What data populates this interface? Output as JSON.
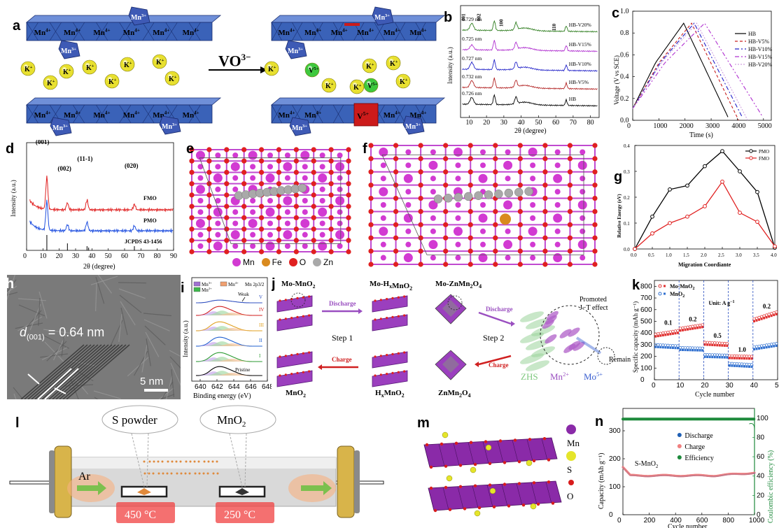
{
  "panels": {
    "a": {
      "label": "a",
      "arrow_label": "VO",
      "arrow_label_sup": "3−",
      "layer_ions_mn4": "Mn",
      "layer_ions_mn4_sup": "4+",
      "layer_ions_mn3": "Mn",
      "layer_ions_mn3_sup": "3+",
      "k_ion": "K",
      "k_ion_sup": "+",
      "v_ion": "V",
      "v_ion_sup": "5+",
      "colors": {
        "slab": "#3a62b8",
        "k": "#e8e030",
        "v": "#3ec83e",
        "vo": "#cc1b1b"
      }
    },
    "b": {
      "label": "b",
      "xlabel": "2θ (degree)",
      "ylabel": "Intensity (a.u.)",
      "peaks": [
        "001",
        "002",
        "100",
        "110"
      ],
      "xticks": [
        10,
        20,
        30,
        40,
        50,
        60,
        70,
        80
      ],
      "series": [
        {
          "name": "HB",
          "d": "0.726 nm",
          "color": "#000000"
        },
        {
          "name": "HB-V5%",
          "d": "0.732 nm",
          "color": "#b22222"
        },
        {
          "name": "HB-V10%",
          "d": "0.727 nm",
          "color": "#2222c8"
        },
        {
          "name": "HB-V15%",
          "d": "0.725 nm",
          "color": "#b030d0"
        },
        {
          "name": "HB-V20%",
          "d": "0.729 nm",
          "color": "#2e7d1e"
        }
      ]
    },
    "c": {
      "label": "c",
      "xlabel": "Time (s)",
      "ylabel": "Voltage (V vs SCE)",
      "xticks": [
        0,
        1000,
        2000,
        3000,
        4000,
        5000
      ],
      "yticks": [
        "0.0",
        "0.2",
        "0.4",
        "0.6",
        "0.8",
        "1.0"
      ],
      "legend": [
        {
          "name": "HB",
          "color": "#000000",
          "dash": ""
        },
        {
          "name": "HB-V5%",
          "color": "#c82020",
          "dash": "4,3"
        },
        {
          "name": "HB-V10%",
          "color": "#2020c8",
          "dash": "6,3,2,3"
        },
        {
          "name": "HB-V15%",
          "color": "#b030d0",
          "dash": "6,3,2,3,2,3"
        },
        {
          "name": "HB-V20%",
          "color": "#d0a0e0",
          "dash": "2,2"
        }
      ]
    },
    "d": {
      "label": "d",
      "xlabel": "2θ (degree)",
      "ylabel": "Intensity (a.u.)",
      "peaks": [
        "(001)",
        "(002)",
        "(11-1)",
        "(020)"
      ],
      "fmo": "FMO",
      "pmo": "PMO",
      "ref": "JCPDS 43-1456",
      "xticks": [
        0,
        10,
        20,
        30,
        40,
        50,
        60,
        70,
        80,
        90
      ]
    },
    "e": {
      "label": "e"
    },
    "f": {
      "label": "f"
    },
    "ef_legend": [
      {
        "name": "Mn",
        "color": "#d23ad2"
      },
      {
        "name": "Fe",
        "color": "#d98a1e"
      },
      {
        "name": "O",
        "color": "#e02020"
      },
      {
        "name": "Zn",
        "color": "#a9a9a9"
      }
    ],
    "g": {
      "label": "g",
      "xlabel": "Migration Coordiante",
      "ylabel": "Relative Energy (eV)",
      "xticks": [
        "0.0",
        "0.5",
        "1.0",
        "1.5",
        "2.0",
        "2.5",
        "3.0",
        "3.5",
        "4.0"
      ],
      "yticks": [
        "0.0",
        "0.1",
        "0.2",
        "0.3",
        "0.4"
      ]
    },
    "h": {
      "label": "h",
      "d_text": "d",
      "d_sub": "(001)",
      "d_value": " = 0.64 nm",
      "scale": "5 nm"
    },
    "i": {
      "label": "i",
      "legend": [
        "Mn",
        "Mn",
        "Mn",
        "Mn 2p"
      ],
      "legend_sup": [
        "3+",
        "2+",
        "4+",
        ""
      ],
      "legend_sub_32": "3/2",
      "weak": "Weak",
      "states": [
        "V",
        "IV",
        "III",
        "II",
        "I",
        "Pristine"
      ],
      "xlabel": "Binding energy (eV)",
      "ylabel": "Intensity (a.u.)",
      "xticks": [
        "640",
        "642",
        "644",
        "646",
        "648"
      ]
    },
    "j": {
      "label": "j",
      "mo_mno2": "Mo-MnO",
      "mo_hxmno2": "Mo-H",
      "mo_znmn2o4": "Mo-ZnMn",
      "mno2": "MnO",
      "hxmno2": "H",
      "znmn2o4": "ZnMn",
      "discharge": "Discharge",
      "charge": "Charge",
      "step1": "Step 1",
      "step2": "Step 2",
      "promoted": "Promoted",
      "jt": "J−T effect",
      "remain": "Remain",
      "zhs": "ZHS",
      "mn2": "Mn",
      "mn2_sup": "2+",
      "mo5": "Mo",
      "mo5_sup": "5+"
    },
    "k": {
      "label": "k",
      "legend": [
        "Mo-MnO",
        "MnO"
      ],
      "unit": "Unit: A g",
      "rates": [
        "0.1",
        "0.2",
        "0.5",
        "1.0",
        "0.2"
      ],
      "xlabel": "Cycle number",
      "ylabel": "Specific capacity (mAh g",
      "xticks": [
        "0",
        "10",
        "20",
        "30",
        "40",
        "50"
      ],
      "yticks": [
        "0",
        "100",
        "200",
        "300",
        "400",
        "500",
        "600",
        "700",
        "800"
      ]
    },
    "l": {
      "label": "l",
      "s_powder": "S powder",
      "mno2": "MnO",
      "ar": "Ar",
      "t1": "450 °C",
      "t2": "250 °C"
    },
    "m": {
      "label": "m",
      "legend": [
        {
          "name": "Mn",
          "color": "#8a2aa8"
        },
        {
          "name": "S",
          "color": "#e5e52a"
        },
        {
          "name": "O",
          "color": "#d81c1c"
        }
      ]
    },
    "n": {
      "label": "n",
      "legend": [
        {
          "name": "Discharge",
          "color": "#1f5fb4"
        },
        {
          "name": "Charge",
          "color": "#f08080"
        },
        {
          "name": "Efficiency",
          "color": "#1e8a3c"
        }
      ],
      "series_label": "S-MnO",
      "xlabel": "Cycle number",
      "ylabel": "Capacity (mAh g",
      "ylabel_right": "Coulombic efficiency (%)",
      "xticks": [
        "0",
        "200",
        "400",
        "600",
        "800",
        "1000"
      ],
      "yticks": [
        "0",
        "100",
        "200",
        "300"
      ],
      "yticks_right": [
        "0",
        "20",
        "40",
        "60",
        "80",
        "100"
      ]
    }
  },
  "chart_data": [
    {
      "id": "c",
      "type": "line",
      "title": "",
      "xlabel": "Time (s)",
      "ylabel": "Voltage (V vs SCE)",
      "xlim": [
        0,
        5300
      ],
      "ylim": [
        0,
        1.0
      ],
      "series": [
        {
          "name": "HB",
          "peak_t": 1950,
          "end_t": 3700,
          "peak_v": 0.89
        },
        {
          "name": "HB-V5%",
          "peak_t": 2250,
          "end_t": 4050,
          "peak_v": 0.89
        },
        {
          "name": "HB-V10%",
          "peak_t": 2350,
          "end_t": 4250,
          "peak_v": 0.89
        },
        {
          "name": "HB-V15%",
          "peak_t": 2750,
          "end_t": 5050,
          "peak_v": 0.89
        },
        {
          "name": "HB-V20%",
          "peak_t": 2450,
          "end_t": 4400,
          "peak_v": 0.89
        }
      ]
    },
    {
      "id": "g",
      "type": "line",
      "title": "",
      "xlabel": "Migration Coordiante",
      "ylabel": "Relative Energy (eV)",
      "xlim": [
        0,
        4.0
      ],
      "ylim": [
        0,
        0.4
      ],
      "x": [
        0,
        0.5,
        1.0,
        1.5,
        2.0,
        2.5,
        3.0,
        3.5,
        4.0
      ],
      "series": [
        {
          "name": "PMO",
          "color": "#000000",
          "values": [
            0.0,
            0.125,
            0.23,
            0.245,
            0.32,
            0.378,
            0.3,
            0.22,
            0.005
          ]
        },
        {
          "name": "FMO",
          "color": "#e02020",
          "values": [
            0.0,
            0.06,
            0.1,
            0.125,
            0.165,
            0.26,
            0.14,
            0.105,
            0.01
          ]
        }
      ]
    },
    {
      "id": "k",
      "type": "scatter",
      "title": "",
      "xlabel": "Cycle number",
      "ylabel": "Specific capacity (mAh g−1)",
      "xlim": [
        0,
        50
      ],
      "ylim": [
        0,
        850
      ],
      "series": [
        {
          "name": "Mo-MnO2",
          "color": "#e03030",
          "segments": [
            [
              1,
              10,
              370,
              400
            ],
            [
              11,
              20,
              420,
              450
            ],
            [
              21,
              30,
              300,
              290
            ],
            [
              31,
              40,
              185,
              180
            ],
            [
              41,
              50,
              500,
              560
            ]
          ]
        },
        {
          "name": "MnO2",
          "color": "#3070d0",
          "segments": [
            [
              1,
              10,
              280,
              270
            ],
            [
              11,
              20,
              255,
              250
            ],
            [
              21,
              30,
              195,
              190
            ],
            [
              31,
              40,
              120,
              110
            ],
            [
              41,
              50,
              260,
              290
            ]
          ]
        }
      ]
    },
    {
      "id": "n",
      "type": "scatter",
      "title": "",
      "xlabel": "Cycle number",
      "ylabel": "Capacity (mAh g−1)",
      "xlim": [
        0,
        1000
      ],
      "ylim": [
        0,
        380
      ],
      "series": [
        {
          "name": "Discharge",
          "start": 170,
          "plateau": 140,
          "end": 150
        },
        {
          "name": "Charge",
          "start": 165,
          "plateau": 138,
          "end": 148
        },
        {
          "name": "Efficiency",
          "value_pct": 99
        }
      ]
    }
  ]
}
